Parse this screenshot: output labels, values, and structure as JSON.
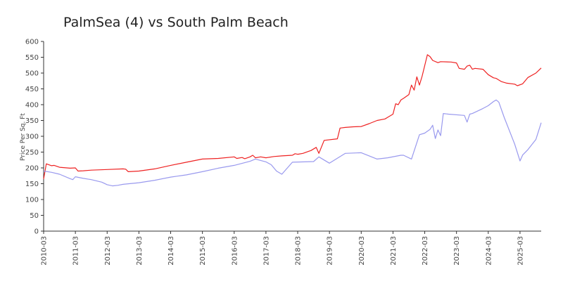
{
  "chart_data": {
    "type": "line",
    "title": "PalmSea (4) vs South Palm Beach",
    "xlabel": "",
    "ylabel": "Price Per Sq. Ft",
    "ylim": [
      0,
      600
    ],
    "yticks": [
      0,
      50,
      100,
      150,
      200,
      250,
      300,
      350,
      400,
      450,
      500,
      550,
      600
    ],
    "xlim": [
      "2010-03",
      "2025-11"
    ],
    "xticks": [
      "2010-03",
      "2011-03",
      "2012-03",
      "2013-03",
      "2014-03",
      "2015-03",
      "2016-03",
      "2017-03",
      "2018-03",
      "2019-03",
      "2020-03",
      "2021-03",
      "2022-03",
      "2023-03",
      "2024-03",
      "2025-03"
    ],
    "grid": false,
    "legend": "none",
    "series": [
      {
        "color": "#ee2222",
        "points": [
          [
            "2010-03",
            165
          ],
          [
            "2010-04",
            213
          ],
          [
            "2010-06",
            207
          ],
          [
            "2010-07",
            208
          ],
          [
            "2010-09",
            202
          ],
          [
            "2011-01",
            199
          ],
          [
            "2011-03",
            200
          ],
          [
            "2011-04",
            190
          ],
          [
            "2011-06",
            191
          ],
          [
            "2011-09",
            193
          ],
          [
            "2012-03",
            195
          ],
          [
            "2012-09",
            197
          ],
          [
            "2012-10",
            196
          ],
          [
            "2012-11",
            188
          ],
          [
            "2013-03",
            190
          ],
          [
            "2013-09",
            197
          ],
          [
            "2014-03",
            208
          ],
          [
            "2014-09",
            218
          ],
          [
            "2015-03",
            228
          ],
          [
            "2015-09",
            230
          ],
          [
            "2016-03",
            235
          ],
          [
            "2016-04",
            230
          ],
          [
            "2016-06",
            233
          ],
          [
            "2016-07",
            229
          ],
          [
            "2016-09",
            235
          ],
          [
            "2016-10",
            240
          ],
          [
            "2016-11",
            232
          ],
          [
            "2017-01",
            235
          ],
          [
            "2017-03",
            232
          ],
          [
            "2017-06",
            236
          ],
          [
            "2017-09",
            238
          ],
          [
            "2018-01",
            240
          ],
          [
            "2018-02",
            245
          ],
          [
            "2018-03",
            243
          ],
          [
            "2018-05",
            246
          ],
          [
            "2018-07",
            252
          ],
          [
            "2018-08",
            255
          ],
          [
            "2018-10",
            265
          ],
          [
            "2018-11",
            246
          ],
          [
            "2019-01",
            287
          ],
          [
            "2019-06",
            292
          ],
          [
            "2019-07",
            326
          ],
          [
            "2019-09",
            328
          ],
          [
            "2019-12",
            330
          ],
          [
            "2020-03",
            331
          ],
          [
            "2020-06",
            340
          ],
          [
            "2020-09",
            350
          ],
          [
            "2020-12",
            355
          ],
          [
            "2021-01",
            360
          ],
          [
            "2021-03",
            370
          ],
          [
            "2021-04",
            403
          ],
          [
            "2021-05",
            400
          ],
          [
            "2021-06",
            415
          ],
          [
            "2021-07",
            420
          ],
          [
            "2021-09",
            432
          ],
          [
            "2021-10",
            462
          ],
          [
            "2021-11",
            446
          ],
          [
            "2021-12",
            488
          ],
          [
            "2022-01",
            462
          ],
          [
            "2022-02",
            490
          ],
          [
            "2022-04",
            558
          ],
          [
            "2022-05",
            552
          ],
          [
            "2022-06",
            540
          ],
          [
            "2022-08",
            533
          ],
          [
            "2022-09",
            536
          ],
          [
            "2023-01",
            535
          ],
          [
            "2023-03",
            532
          ],
          [
            "2023-04",
            515
          ],
          [
            "2023-06",
            512
          ],
          [
            "2023-07",
            522
          ],
          [
            "2023-08",
            525
          ],
          [
            "2023-09",
            512
          ],
          [
            "2023-10",
            515
          ],
          [
            "2024-01",
            512
          ],
          [
            "2024-03",
            495
          ],
          [
            "2024-05",
            485
          ],
          [
            "2024-06",
            483
          ],
          [
            "2024-08",
            473
          ],
          [
            "2024-10",
            468
          ],
          [
            "2025-01",
            465
          ],
          [
            "2025-02",
            460
          ],
          [
            "2025-04",
            466
          ],
          [
            "2025-06",
            486
          ],
          [
            "2025-09",
            500
          ],
          [
            "2025-11",
            516
          ]
        ]
      },
      {
        "color": "#9999ee",
        "points": [
          [
            "2010-03",
            190
          ],
          [
            "2010-06",
            186
          ],
          [
            "2010-09",
            180
          ],
          [
            "2011-01",
            166
          ],
          [
            "2011-02",
            163
          ],
          [
            "2011-03",
            172
          ],
          [
            "2011-06",
            167
          ],
          [
            "2011-09",
            163
          ],
          [
            "2012-01",
            155
          ],
          [
            "2012-03",
            147
          ],
          [
            "2012-05",
            143
          ],
          [
            "2012-07",
            145
          ],
          [
            "2012-09",
            148
          ],
          [
            "2013-03",
            153
          ],
          [
            "2013-09",
            161
          ],
          [
            "2014-03",
            171
          ],
          [
            "2014-09",
            178
          ],
          [
            "2015-03",
            188
          ],
          [
            "2015-09",
            199
          ],
          [
            "2016-03",
            208
          ],
          [
            "2016-09",
            221
          ],
          [
            "2016-11",
            228
          ],
          [
            "2017-03",
            219
          ],
          [
            "2017-05",
            210
          ],
          [
            "2017-07",
            190
          ],
          [
            "2017-09",
            180
          ],
          [
            "2018-01",
            218
          ],
          [
            "2018-09",
            220
          ],
          [
            "2018-11",
            235
          ],
          [
            "2019-03",
            215
          ],
          [
            "2019-09",
            246
          ],
          [
            "2020-03",
            248
          ],
          [
            "2020-06",
            238
          ],
          [
            "2020-09",
            228
          ],
          [
            "2021-01",
            232
          ],
          [
            "2021-06",
            240
          ],
          [
            "2021-07",
            240
          ],
          [
            "2021-10",
            228
          ],
          [
            "2022-01",
            305
          ],
          [
            "2022-03",
            310
          ],
          [
            "2022-05",
            322
          ],
          [
            "2022-06",
            335
          ],
          [
            "2022-07",
            293
          ],
          [
            "2022-08",
            320
          ],
          [
            "2022-09",
            302
          ],
          [
            "2022-10",
            372
          ],
          [
            "2022-12",
            370
          ],
          [
            "2023-06",
            366
          ],
          [
            "2023-07",
            345
          ],
          [
            "2023-08",
            370
          ],
          [
            "2023-09",
            372
          ],
          [
            "2024-01",
            388
          ],
          [
            "2024-03",
            397
          ],
          [
            "2024-05",
            410
          ],
          [
            "2024-06",
            415
          ],
          [
            "2024-07",
            408
          ],
          [
            "2024-09",
            360
          ],
          [
            "2025-01",
            275
          ],
          [
            "2025-03",
            222
          ],
          [
            "2025-04",
            241
          ],
          [
            "2025-06",
            258
          ],
          [
            "2025-09",
            290
          ],
          [
            "2025-11",
            343
          ]
        ]
      }
    ]
  }
}
